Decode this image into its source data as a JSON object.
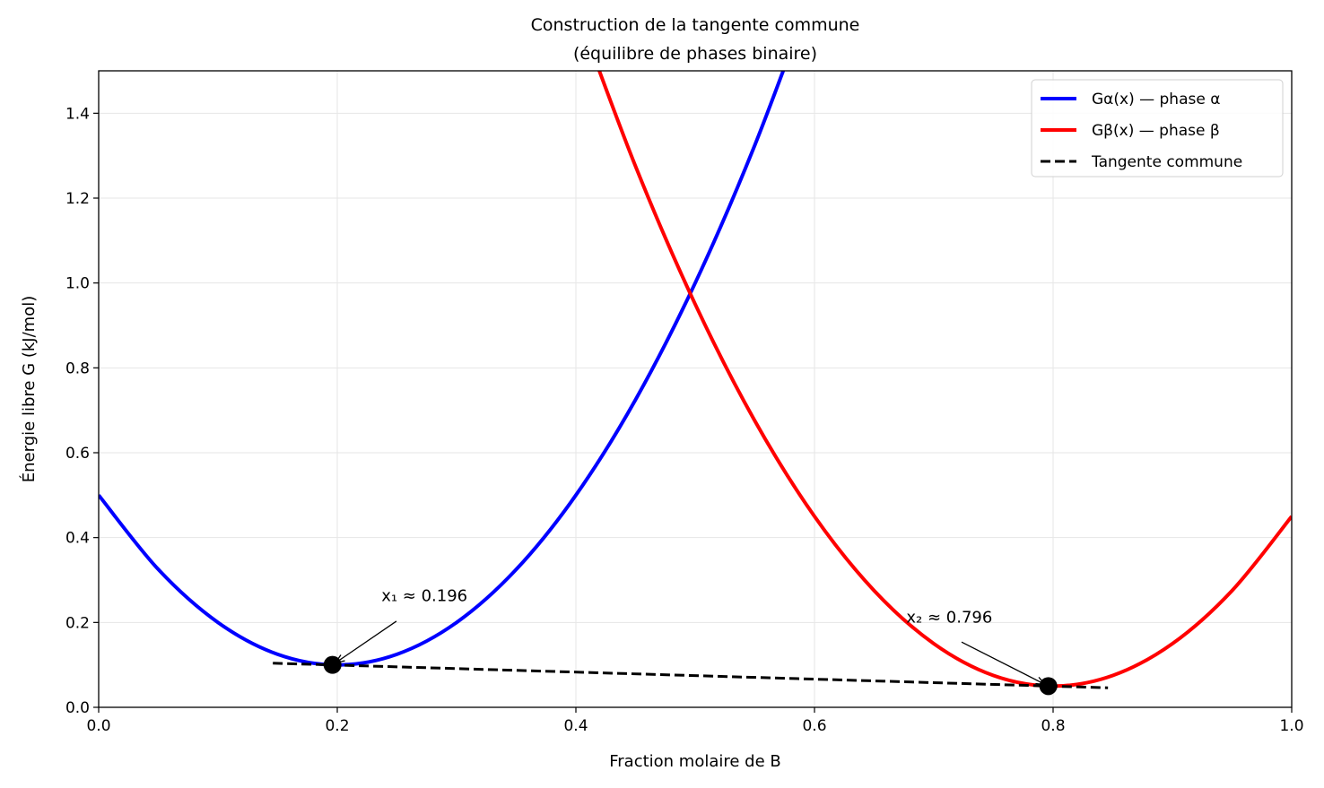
{
  "chart_data": {
    "type": "line",
    "title": "Construction de la tangente commune",
    "subtitle": "(équilibre de phases binaire)",
    "xlabel": "Fraction molaire de B",
    "ylabel": "Énergie libre G (kJ/mol)",
    "xlim": [
      0,
      1
    ],
    "ylim": [
      0,
      1.5
    ],
    "xticks": [
      0,
      0.2,
      0.4,
      0.6,
      0.8,
      1.0
    ],
    "xtick_labels": [
      "0.0",
      "0.2",
      "0.4",
      "0.6",
      "0.8",
      "1.0"
    ],
    "yticks": [
      0,
      0.2,
      0.4,
      0.6,
      0.8,
      1.0,
      1.2,
      1.4
    ],
    "ytick_labels": [
      "0.0",
      "0.2",
      "0.4",
      "0.6",
      "0.8",
      "1.0",
      "1.2",
      "1.4"
    ],
    "grid": true,
    "legend_position": "top-right",
    "series": [
      {
        "name": "Gα(x) — phase α",
        "color": "#0000ff",
        "style": "solid",
        "x": [
          0,
          0.05,
          0.1,
          0.15,
          0.2,
          0.25,
          0.3,
          0.35,
          0.4,
          0.45,
          0.5,
          0.55,
          0.6
        ],
        "y": [
          0.5,
          0.325,
          0.2,
          0.125,
          0.1,
          0.125,
          0.2,
          0.325,
          0.5,
          0.725,
          1.0,
          1.325,
          1.7
        ]
      },
      {
        "name": "Gβ(x) — phase β",
        "color": "#ff0000",
        "style": "solid",
        "x": [
          0.4,
          0.45,
          0.5,
          0.55,
          0.6,
          0.65,
          0.7,
          0.75,
          0.8,
          0.85,
          0.9,
          0.95,
          1.0
        ],
        "y": [
          1.65,
          1.275,
          0.95,
          0.675,
          0.45,
          0.275,
          0.15,
          0.075,
          0.05,
          0.075,
          0.15,
          0.275,
          0.45
        ]
      },
      {
        "name": "Tangente commune",
        "color": "#000000",
        "style": "dashed",
        "x": [
          0.146,
          0.846
        ],
        "y": [
          0.104,
          0.046
        ]
      }
    ],
    "points": [
      {
        "x": 0.196,
        "y": 0.1,
        "label": "x₁ ≈ 0.196",
        "label_x": 0.237,
        "label_y": 0.25
      },
      {
        "x": 0.796,
        "y": 0.05,
        "label": "x₂ ≈ 0.796",
        "label_x": 0.677,
        "label_y": 0.2
      }
    ]
  }
}
